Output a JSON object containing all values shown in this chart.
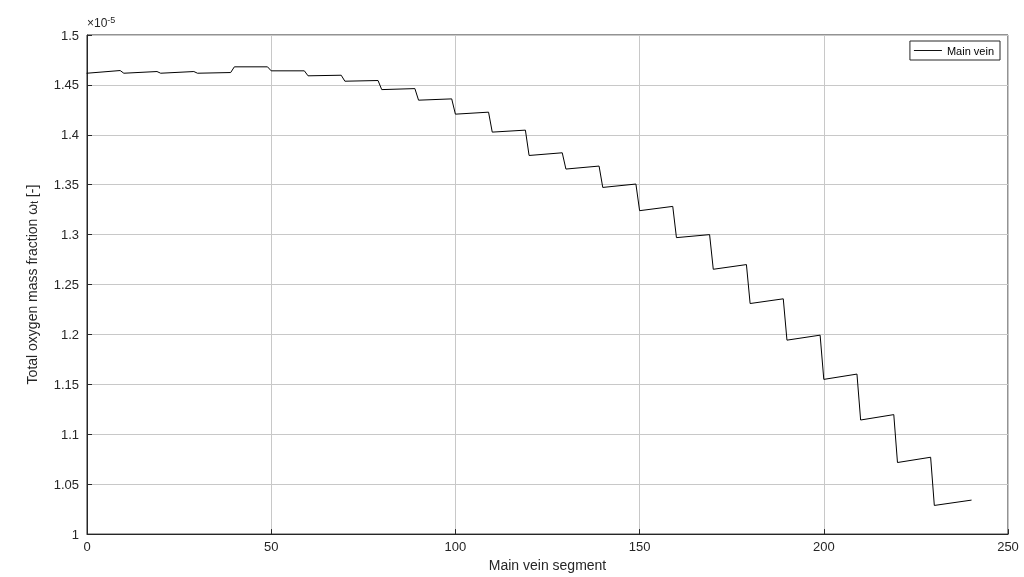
{
  "chart_data": {
    "type": "line",
    "xlabel": "Main vein segment",
    "ylabel": "Total oxygen mass fraction ω$_{t}$ [-]",
    "annotations": [
      "×10$^{-5}$"
    ],
    "series": [
      {
        "name": "Main vein",
        "color": "#000000",
        "x": [
          0,
          9,
          10,
          19,
          20,
          29,
          30,
          39,
          40,
          49,
          50,
          59,
          60,
          69,
          70,
          79,
          80,
          89,
          90,
          99,
          100,
          109,
          110,
          119,
          120,
          129,
          130,
          139,
          140,
          149,
          150,
          159,
          160,
          169,
          170,
          179,
          180,
          189,
          190,
          199,
          200,
          209,
          210,
          219,
          220,
          229,
          230,
          240
        ],
        "values": [
          1.4617,
          1.4644,
          1.4617,
          1.4634,
          1.4617,
          1.4634,
          1.4617,
          1.4624,
          1.4681,
          1.4681,
          1.4641,
          1.4641,
          1.4591,
          1.4597,
          1.4537,
          1.4544,
          1.4453,
          1.4463,
          1.4347,
          1.436,
          1.4207,
          1.4227,
          1.4027,
          1.4047,
          1.3793,
          1.382,
          1.3657,
          1.3687,
          1.3473,
          1.3507,
          1.324,
          1.3283,
          1.297,
          1.3,
          1.2653,
          1.27,
          1.231,
          1.2357,
          1.1943,
          1.1993,
          1.155,
          1.1603,
          1.1143,
          1.1197,
          1.0717,
          1.077,
          1.0287,
          1.034
        ]
      }
    ],
    "xlim": [
      0,
      250
    ],
    "xticks": [
      0,
      50,
      100,
      150,
      200,
      250
    ],
    "ylim": [
      1,
      1.5
    ],
    "yticks": [
      1,
      1.05,
      1.1,
      1.15,
      1.2,
      1.25,
      1.3,
      1.35,
      1.4,
      1.45,
      1.5
    ],
    "grid": true,
    "legend": "top right",
    "marker": "none",
    "line_style": "solid"
  }
}
